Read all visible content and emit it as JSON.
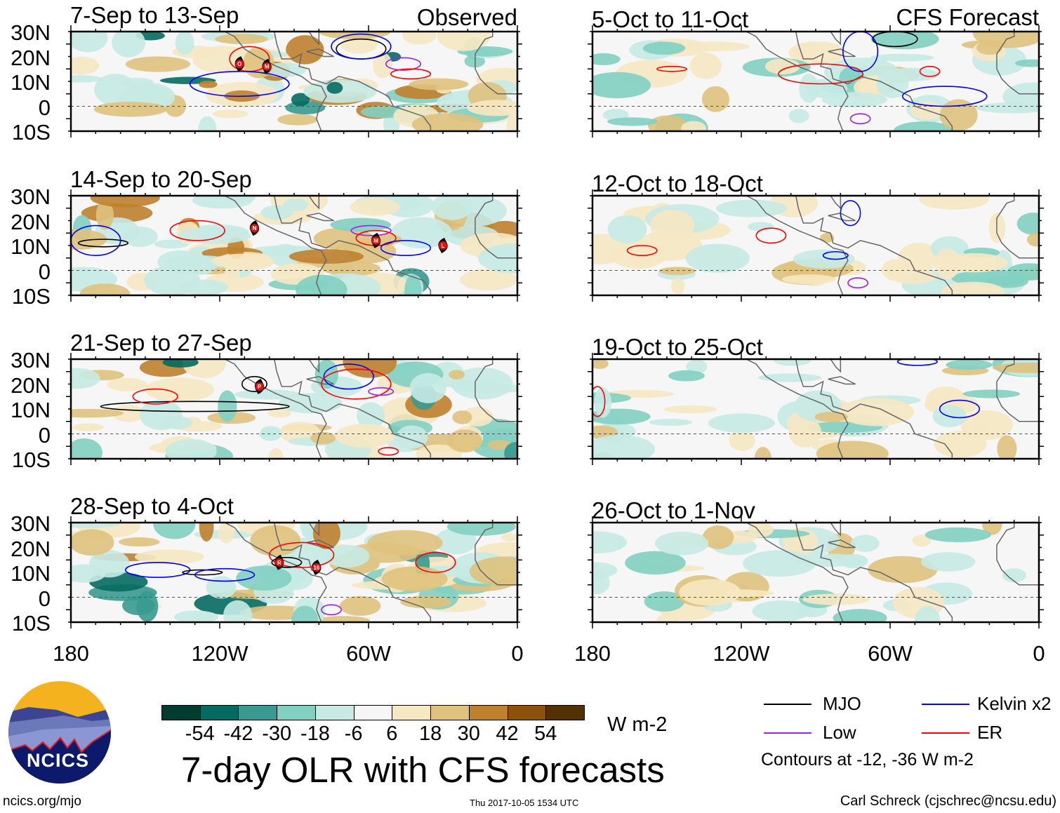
{
  "figure_title": "7-day OLR with CFS forecasts",
  "labels": {
    "observed": "Observed",
    "forecast": "CFS Forecast",
    "units": "W m-2"
  },
  "lat_labels": [
    "30N",
    "20N",
    "10N",
    "0",
    "10S"
  ],
  "lon_labels": [
    "180",
    "120W",
    "60W",
    "0"
  ],
  "colorbar": {
    "ticks": [
      "-54",
      "-42",
      "-30",
      "-18",
      "-6",
      "6",
      "18",
      "30",
      "42",
      "54"
    ],
    "colors": [
      "#013c30",
      "#056a62",
      "#389a90",
      "#82d0c2",
      "#c7eae4",
      "#f6f6f6",
      "#f6e8c3",
      "#dfc27d",
      "#bf812d",
      "#8c510a",
      "#543005"
    ]
  },
  "legend": {
    "items": [
      {
        "label": "MJO",
        "color": "#000000"
      },
      {
        "label": "Kelvin x2",
        "color": "#0000ff"
      },
      {
        "label": "Low",
        "color": "#a020f0"
      },
      {
        "label": "ER",
        "color": "#ff0000"
      }
    ],
    "note": "Contours at -12, -36 W m-2"
  },
  "footer": {
    "url": "ncics.org/mjo",
    "timestamp": "Thu 2017-10-05 1534 UTC",
    "author": "Carl Schreck (cjschrec@ncsu.edu)"
  },
  "logo": {
    "text": "NCICS"
  },
  "chart_data": {
    "type": "heatmap",
    "lon_range": [
      -180,
      0
    ],
    "lat_range": [
      -10,
      30
    ],
    "panels": [
      {
        "title": "7-Sep to 13-Sep",
        "kind": "observed",
        "seed": 11,
        "storms": [
          {
            "name": "O",
            "lon": -112,
            "lat": 17
          },
          {
            "name": "M",
            "lon": -101,
            "lat": 16
          }
        ],
        "contours": [
          {
            "wave": "ER",
            "lon": -108,
            "lat": 19,
            "rlon": 8,
            "rlat": 5
          },
          {
            "wave": "Kelvin",
            "lon": -112,
            "lat": 9,
            "rlon": 20,
            "rlat": 5
          },
          {
            "wave": "MJO",
            "lon": -63,
            "lat": 23,
            "rlon": 10,
            "rlat": 4
          },
          {
            "wave": "Kelvin",
            "lon": -63,
            "lat": 24,
            "rlon": 12,
            "rlat": 5
          },
          {
            "wave": "Low",
            "lon": -46,
            "lat": 17,
            "rlon": 7,
            "rlat": 2.5
          },
          {
            "wave": "ER",
            "lon": -43,
            "lat": 13,
            "rlon": 8,
            "rlat": 2
          }
        ]
      },
      {
        "title": "14-Sep to 20-Sep",
        "kind": "observed",
        "seed": 23,
        "storms": [
          {
            "name": "N",
            "lon": -106,
            "lat": 17
          },
          {
            "name": "M",
            "lon": -57,
            "lat": 12
          },
          {
            "name": "L",
            "lon": -30,
            "lat": 10
          }
        ],
        "contours": [
          {
            "wave": "ER",
            "lon": -129,
            "lat": 16,
            "rlon": 11,
            "rlat": 4
          },
          {
            "wave": "MJO",
            "lon": -167,
            "lat": 11,
            "rlon": 10,
            "rlat": 1.5
          },
          {
            "wave": "Kelvin",
            "lon": -170,
            "lat": 12,
            "rlon": 10,
            "rlat": 6
          },
          {
            "wave": "Low",
            "lon": -59,
            "lat": 16,
            "rlon": 8,
            "rlat": 2
          },
          {
            "wave": "ER",
            "lon": -57,
            "lat": 13,
            "rlon": 8,
            "rlat": 3
          },
          {
            "wave": "Kelvin",
            "lon": -45,
            "lat": 9,
            "rlon": 10,
            "rlat": 3
          }
        ]
      },
      {
        "title": "21-Sep to 27-Sep",
        "kind": "observed",
        "seed": 37,
        "storms": [
          {
            "name": "P",
            "lon": -104,
            "lat": 19
          }
        ],
        "contours": [
          {
            "wave": "MJO",
            "lon": -130,
            "lat": 11,
            "rlon": 38,
            "rlat": 2
          },
          {
            "wave": "MJO",
            "lon": -106,
            "lat": 20,
            "rlon": 5,
            "rlat": 3
          },
          {
            "wave": "ER",
            "lon": -146,
            "lat": 15,
            "rlon": 9,
            "rlat": 3
          },
          {
            "wave": "Kelvin",
            "lon": -68,
            "lat": 23,
            "rlon": 10,
            "rlat": 5
          },
          {
            "wave": "ER",
            "lon": -65,
            "lat": 20,
            "rlon": 14,
            "rlat": 6
          },
          {
            "wave": "Low",
            "lon": -55,
            "lat": 17,
            "rlon": 5,
            "rlat": 1.5
          },
          {
            "wave": "ER",
            "lon": -52,
            "lat": -7,
            "rlon": 4,
            "rlat": 1.5
          }
        ]
      },
      {
        "title": "28-Sep to 4-Oct",
        "kind": "observed",
        "seed": 51,
        "storms": [
          {
            "name": "R",
            "lon": -96,
            "lat": 14
          },
          {
            "name": "16",
            "lon": -81,
            "lat": 12
          }
        ],
        "contours": [
          {
            "wave": "Kelvin",
            "lon": -145,
            "lat": 11,
            "rlon": 13,
            "rlat": 3
          },
          {
            "wave": "MJO",
            "lon": -127,
            "lat": 10,
            "rlon": 8,
            "rlat": 1
          },
          {
            "wave": "Kelvin",
            "lon": -118,
            "lat": 9,
            "rlon": 12,
            "rlat": 2.5
          },
          {
            "wave": "ER",
            "lon": -87,
            "lat": 17,
            "rlon": 13,
            "rlat": 5
          },
          {
            "wave": "MJO",
            "lon": -93,
            "lat": 14,
            "rlon": 6,
            "rlat": 2
          },
          {
            "wave": "ER",
            "lon": -33,
            "lat": 14,
            "rlon": 8,
            "rlat": 4
          },
          {
            "wave": "Low",
            "lon": -75,
            "lat": -5,
            "rlon": 4,
            "rlat": 2
          }
        ]
      },
      {
        "title": "5-Oct to 11-Oct",
        "kind": "forecast",
        "seed": 61,
        "storms": [],
        "contours": [
          {
            "wave": "ER",
            "lon": -88,
            "lat": 13,
            "rlon": 17,
            "rlat": 4
          },
          {
            "wave": "Kelvin",
            "lon": -72,
            "lat": 22,
            "rlon": 7,
            "rlat": 8
          },
          {
            "wave": "MJO",
            "lon": -58,
            "lat": 27,
            "rlon": 9,
            "rlat": 3
          },
          {
            "wave": "Kelvin",
            "lon": -38,
            "lat": 4,
            "rlon": 17,
            "rlat": 4
          },
          {
            "wave": "ER",
            "lon": -148,
            "lat": 15,
            "rlon": 6,
            "rlat": 1
          },
          {
            "wave": "Low",
            "lon": -72,
            "lat": -5,
            "rlon": 4,
            "rlat": 2
          },
          {
            "wave": "ER",
            "lon": -44,
            "lat": 14,
            "rlon": 4,
            "rlat": 2
          }
        ]
      },
      {
        "title": "12-Oct to 18-Oct",
        "kind": "forecast",
        "seed": 73,
        "storms": [],
        "contours": [
          {
            "wave": "Kelvin",
            "lon": -76,
            "lat": 23,
            "rlon": 4,
            "rlat": 5
          },
          {
            "wave": "ER",
            "lon": -108,
            "lat": 14,
            "rlon": 6,
            "rlat": 3
          },
          {
            "wave": "ER",
            "lon": -160,
            "lat": 8,
            "rlon": 6,
            "rlat": 2
          },
          {
            "wave": "Kelvin",
            "lon": -82,
            "lat": 6,
            "rlon": 5,
            "rlat": 1.5
          },
          {
            "wave": "Low",
            "lon": -73,
            "lat": -5,
            "rlon": 4,
            "rlat": 2
          }
        ]
      },
      {
        "title": "19-Oct to 25-Oct",
        "kind": "forecast",
        "seed": 89,
        "storms": [],
        "contours": [
          {
            "wave": "Kelvin",
            "lon": -49,
            "lat": 29,
            "rlon": 8,
            "rlat": 1.5
          },
          {
            "wave": "Kelvin",
            "lon": -32,
            "lat": 10,
            "rlon": 8,
            "rlat": 3.5
          },
          {
            "wave": "ER",
            "lon": -178,
            "lat": 13,
            "rlon": 3,
            "rlat": 6
          }
        ]
      },
      {
        "title": "26-Oct to 1-Nov",
        "kind": "forecast",
        "seed": 97,
        "storms": [],
        "contours": []
      }
    ]
  }
}
